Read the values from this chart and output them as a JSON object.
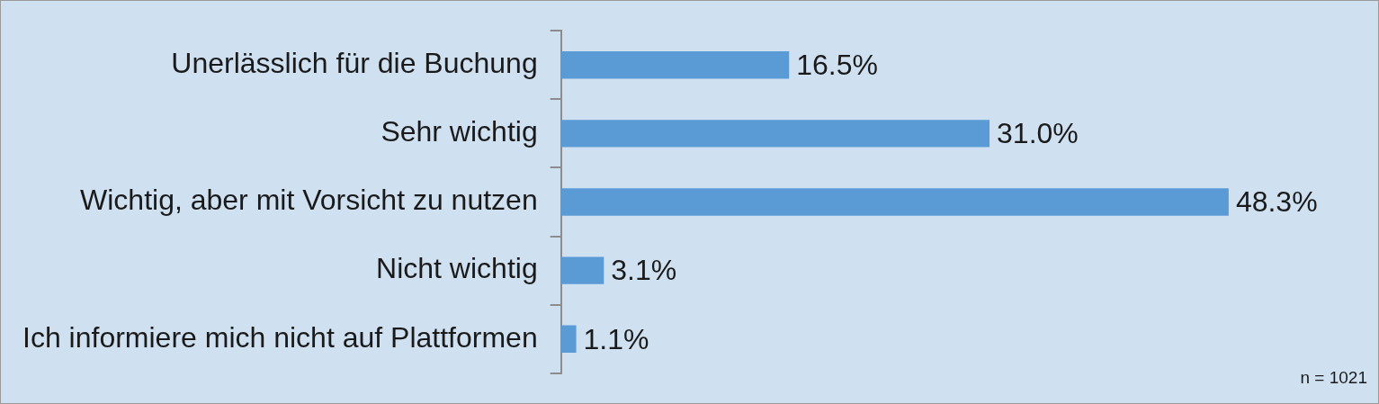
{
  "chart_data": {
    "type": "bar",
    "orientation": "horizontal",
    "categories": [
      "Unerlässlich für die Buchung",
      "Sehr wichtig",
      "Wichtig, aber mit Vorsicht zu nutzen",
      "Nicht wichtig",
      "Ich informiere mich nicht auf Plattformen"
    ],
    "values": [
      16.5,
      31.0,
      48.3,
      3.1,
      1.1
    ],
    "value_labels": [
      "16.5%",
      "31.0%",
      "48.3%",
      "3.1%",
      "1.1%"
    ],
    "color": "#5b9bd5",
    "tick_labels": "y",
    "grid": false,
    "legend": false,
    "annotations": [
      "n = 1021"
    ]
  }
}
